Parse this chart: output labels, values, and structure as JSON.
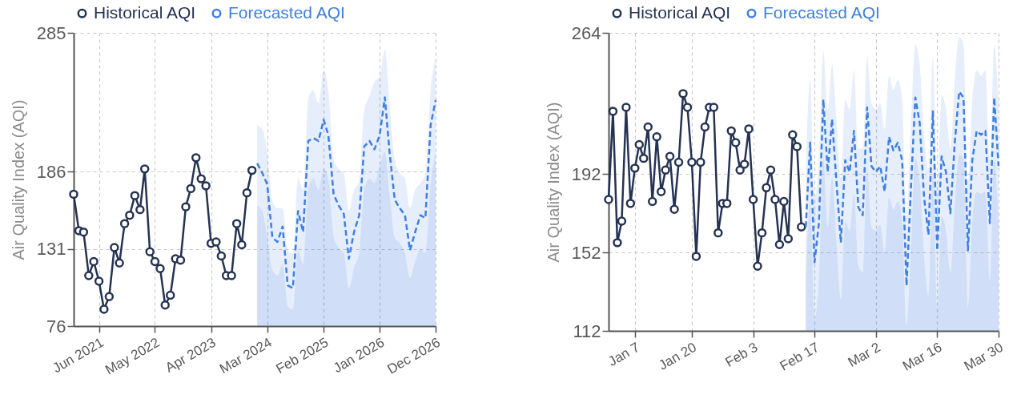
{
  "chart_data": [
    {
      "type": "line",
      "ylabel": "Air Quality Index (AQI)",
      "xlim": [
        "2021-01",
        "2026-12"
      ],
      "xticks": [
        {
          "value": "2021-06",
          "label": "Jun 2021"
        },
        {
          "value": "2022-05",
          "label": "May 2022"
        },
        {
          "value": "2023-04",
          "label": "Apr 2023"
        },
        {
          "value": "2024-03",
          "label": "Mar 2024"
        },
        {
          "value": "2025-02",
          "label": "Feb 2025"
        },
        {
          "value": "2026-01",
          "label": "Jan 2026"
        },
        {
          "value": "2026-12",
          "label": "Dec 2026"
        }
      ],
      "ylim": [
        76,
        285
      ],
      "yticks": [
        76,
        131,
        186,
        285
      ],
      "grid": true,
      "legend": "top left",
      "series": [
        {
          "name": "Historical AQI",
          "color": "#253352",
          "marker": "circle",
          "line_style": "solid",
          "x": [
            "2021-01",
            "2021-02",
            "2021-03",
            "2021-04",
            "2021-05",
            "2021-06",
            "2021-07",
            "2021-08",
            "2021-09",
            "2021-10",
            "2021-11",
            "2021-12",
            "2022-01",
            "2022-02",
            "2022-03",
            "2022-04",
            "2022-05",
            "2022-06",
            "2022-07",
            "2022-08",
            "2022-09",
            "2022-10",
            "2022-11",
            "2022-12",
            "2023-01",
            "2023-02",
            "2023-03",
            "2023-04",
            "2023-05",
            "2023-06",
            "2023-07",
            "2023-08",
            "2023-09",
            "2023-10",
            "2023-11",
            "2023-12"
          ],
          "values": [
            170,
            144,
            143,
            112,
            122,
            108,
            88,
            97,
            132,
            121,
            149,
            155,
            169,
            159,
            188,
            129,
            122,
            117,
            91,
            98,
            124,
            123,
            161,
            174,
            196,
            181,
            176,
            135,
            136,
            126,
            112,
            112,
            149,
            134,
            171,
            187
          ]
        },
        {
          "name": "Forecasted AQI",
          "color": "#3f7fe0",
          "marker": "none",
          "line_style": "dashed",
          "x": [
            "2024-01",
            "2024-02",
            "2024-03",
            "2024-04",
            "2024-05",
            "2024-06",
            "2024-07",
            "2024-08",
            "2024-09",
            "2024-10",
            "2024-11",
            "2024-12",
            "2025-01",
            "2025-02",
            "2025-03",
            "2025-04",
            "2025-05",
            "2025-06",
            "2025-07",
            "2025-08",
            "2025-09",
            "2025-10",
            "2025-11",
            "2025-12",
            "2026-01",
            "2026-02",
            "2026-03",
            "2026-04",
            "2026-05",
            "2026-06",
            "2026-07",
            "2026-08",
            "2026-09",
            "2026-10",
            "2026-11",
            "2026-12"
          ],
          "values": [
            192,
            185,
            177,
            139,
            136,
            147,
            105,
            103,
            158,
            143,
            208,
            210,
            208,
            223,
            212,
            170,
            162,
            156,
            124,
            143,
            155,
            204,
            208,
            202,
            212,
            239,
            200,
            166,
            160,
            155,
            130,
            143,
            155,
            153,
            219,
            237
          ],
          "upper": [
            219,
            216,
            200,
            165,
            160,
            160,
            130,
            128,
            181,
            173,
            238,
            244,
            235,
            258,
            244,
            195,
            188,
            185,
            158,
            173,
            180,
            230,
            240,
            250,
            254,
            273,
            235,
            195,
            185,
            181,
            160,
            173,
            178,
            185,
            244,
            267
          ],
          "lower": [
            162,
            158,
            140,
            116,
            112,
            120,
            90,
            88,
            130,
            120,
            173,
            181,
            173,
            188,
            181,
            140,
            132,
            128,
            103,
            118,
            128,
            173,
            181,
            178,
            190,
            200,
            170,
            139,
            135,
            128,
            110,
            122,
            131,
            128,
            177,
            200
          ]
        }
      ]
    },
    {
      "type": "line",
      "ylabel": "Air Quality Index (AQI)",
      "xlim": [
        "--01-01",
        "--03-30"
      ],
      "xticks": [
        {
          "value": "--01-07",
          "label": "Jan 7"
        },
        {
          "value": "--01-20",
          "label": "Jan 20"
        },
        {
          "value": "--02-03",
          "label": "Feb 3"
        },
        {
          "value": "--02-17",
          "label": "Feb 17"
        },
        {
          "value": "--03-02",
          "label": "Mar 2"
        },
        {
          "value": "--03-16",
          "label": "Mar 16"
        },
        {
          "value": "--03-30",
          "label": "Mar 30"
        }
      ],
      "ylim": [
        112,
        264
      ],
      "yticks": [
        112,
        152,
        192,
        264
      ],
      "grid": true,
      "legend": "top left",
      "series": [
        {
          "name": "Historical AQI",
          "color": "#253352",
          "marker": "circle",
          "line_style": "solid",
          "x": [
            "--01-01",
            "--01-02",
            "--01-03",
            "--01-04",
            "--01-05",
            "--01-06",
            "--01-07",
            "--01-08",
            "--01-09",
            "--01-10",
            "--01-11",
            "--01-12",
            "--01-13",
            "--01-14",
            "--01-15",
            "--01-16",
            "--01-17",
            "--01-18",
            "--01-19",
            "--01-20",
            "--01-21",
            "--01-22",
            "--01-23",
            "--01-24",
            "--01-25",
            "--01-26",
            "--01-27",
            "--01-28",
            "--01-29",
            "--01-30",
            "--01-31",
            "--02-01",
            "--02-02",
            "--02-03",
            "--02-04",
            "--02-05",
            "--02-06",
            "--02-07",
            "--02-08",
            "--02-09",
            "--02-10",
            "--02-11",
            "--02-12",
            "--02-13",
            "--02-14"
          ],
          "values": [
            179,
            224,
            157,
            168,
            226,
            177,
            195,
            207,
            200,
            216,
            178,
            211,
            183,
            194,
            201,
            174,
            198,
            233,
            226,
            198,
            150,
            198,
            216,
            226,
            226,
            162,
            177,
            177,
            214,
            208,
            194,
            197,
            215,
            179,
            145,
            162,
            185,
            194,
            179,
            156,
            178,
            159,
            212,
            206,
            165
          ]
        },
        {
          "name": "Forecasted AQI",
          "color": "#3f7fe0",
          "marker": "none",
          "line_style": "dashed",
          "x": [
            "--02-15",
            "--02-16",
            "--02-17",
            "--02-18",
            "--02-19",
            "--02-20",
            "--02-21",
            "--02-22",
            "--02-23",
            "--02-24",
            "--02-25",
            "--02-26",
            "--02-27",
            "--02-28",
            "--02-29",
            "--03-01",
            "--03-02",
            "--03-03",
            "--03-04",
            "--03-05",
            "--03-06",
            "--03-07",
            "--03-08",
            "--03-09",
            "--03-10",
            "--03-11",
            "--03-12",
            "--03-13",
            "--03-14",
            "--03-15",
            "--03-16",
            "--03-17",
            "--03-18",
            "--03-19",
            "--03-20",
            "--03-21",
            "--03-22",
            "--03-23",
            "--03-24",
            "--03-25",
            "--03-26",
            "--03-27",
            "--03-28",
            "--03-29",
            "--03-30"
          ],
          "values": [
            165,
            208,
            147,
            167,
            230,
            193,
            220,
            188,
            157,
            199,
            193,
            214,
            175,
            171,
            226,
            196,
            193,
            196,
            183,
            211,
            204,
            208,
            199,
            135,
            185,
            231,
            218,
            180,
            161,
            224,
            153,
            201,
            193,
            172,
            208,
            234,
            231,
            153,
            199,
            214,
            212,
            214,
            167,
            231,
            196
          ],
          "upper": [
            195,
            240,
            180,
            200,
            255,
            225,
            248,
            220,
            190,
            230,
            225,
            245,
            205,
            205,
            252,
            228,
            225,
            228,
            215,
            242,
            235,
            240,
            230,
            170,
            218,
            258,
            248,
            212,
            195,
            252,
            188,
            232,
            225,
            205,
            240,
            262,
            258,
            188,
            230,
            245,
            242,
            245,
            200,
            258,
            228
          ],
          "lower": [
            138,
            178,
            118,
            138,
            200,
            165,
            190,
            158,
            128,
            168,
            163,
            182,
            145,
            142,
            195,
            165,
            163,
            166,
            152,
            180,
            174,
            178,
            168,
            115,
            155,
            200,
            188,
            150,
            130,
            192,
            124,
            170,
            163,
            142,
            176,
            202,
            200,
            124,
            168,
            183,
            182,
            183,
            138,
            200,
            166
          ]
        }
      ]
    }
  ]
}
